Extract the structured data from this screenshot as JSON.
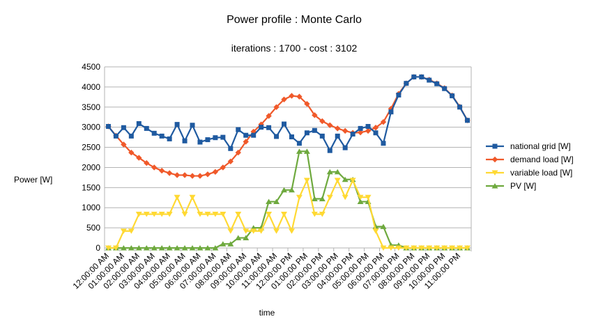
{
  "chart_data": {
    "type": "line",
    "title": "Power profile : Monte Carlo",
    "subtitle": "iterations : 1700 - cost : 3102",
    "xlabel": "time",
    "ylabel": "Power [W]",
    "ylim": [
      0,
      4500
    ],
    "yticks": [
      0,
      500,
      1000,
      1500,
      2000,
      2500,
      3000,
      3500,
      4000,
      4500
    ],
    "grid": true,
    "legend_position": "right",
    "x_tick_labels": [
      "12:00:00 AM",
      "01:00:00 AM",
      "02:00:00 AM",
      "03:00:00 AM",
      "04:00:00 AM",
      "05:00:00 AM",
      "06:00:00 AM",
      "07:00:00 AM",
      "08:00:00 AM",
      "09:00:00 AM",
      "10:00:00 AM",
      "11:00:00 AM",
      "12:00:00 PM",
      "01:00:00 PM",
      "02:00:00 PM",
      "03:00:00 PM",
      "04:00:00 PM",
      "05:00:00 PM",
      "06:00:00 PM",
      "07:00:00 PM",
      "08:00:00 PM",
      "09:00:00 PM",
      "10:00:00 PM",
      "11:00:00 PM"
    ],
    "series": [
      {
        "name": "national grid [W]",
        "color": "#1f5aa0",
        "marker": "square",
        "values": [
          3020,
          2780,
          2990,
          2780,
          3090,
          2970,
          2850,
          2780,
          2710,
          3070,
          2660,
          3050,
          2630,
          2690,
          2740,
          2750,
          2470,
          2940,
          2800,
          2800,
          3000,
          2990,
          2770,
          3080,
          2760,
          2600,
          2860,
          2920,
          2780,
          2420,
          2780,
          2490,
          2830,
          2970,
          3020,
          2860,
          2600,
          3380,
          3800,
          4090,
          4250,
          4250,
          4170,
          4080,
          3960,
          3780,
          3500,
          3170
        ]
      },
      {
        "name": "demand load [W]",
        "color": "#f0592a",
        "marker": "diamond",
        "values": [
          3020,
          2790,
          2570,
          2370,
          2240,
          2110,
          2000,
          1920,
          1860,
          1810,
          1810,
          1790,
          1790,
          1830,
          1890,
          2000,
          2150,
          2370,
          2640,
          2890,
          3070,
          3280,
          3500,
          3690,
          3780,
          3760,
          3580,
          3300,
          3150,
          3050,
          2970,
          2910,
          2860,
          2870,
          2910,
          2990,
          3130,
          3460,
          3830,
          4090,
          4250,
          4250,
          4180,
          4090,
          3970,
          3790,
          3510,
          3170
        ]
      },
      {
        "name": "variable load [W]",
        "color": "#ffd933",
        "marker": "triangle-down",
        "values": [
          0,
          0,
          420,
          420,
          840,
          840,
          840,
          840,
          840,
          1260,
          840,
          1260,
          840,
          840,
          840,
          840,
          420,
          840,
          420,
          420,
          420,
          840,
          420,
          840,
          420,
          1260,
          1680,
          840,
          840,
          1260,
          1680,
          1260,
          1680,
          1260,
          1260,
          420,
          0,
          0,
          0,
          0,
          0,
          0,
          0,
          0,
          0,
          0,
          0,
          0
        ]
      },
      {
        "name": "PV [W]",
        "color": "#6ea93e",
        "marker": "triangle-up",
        "values": [
          0,
          0,
          0,
          0,
          0,
          0,
          0,
          0,
          0,
          0,
          0,
          0,
          0,
          0,
          0,
          100,
          100,
          250,
          250,
          500,
          500,
          1150,
          1150,
          1440,
          1440,
          2400,
          2400,
          1220,
          1220,
          1890,
          1890,
          1700,
          1700,
          1150,
          1150,
          530,
          530,
          70,
          70,
          0,
          0,
          0,
          0,
          0,
          0,
          0,
          0,
          0
        ]
      }
    ]
  }
}
